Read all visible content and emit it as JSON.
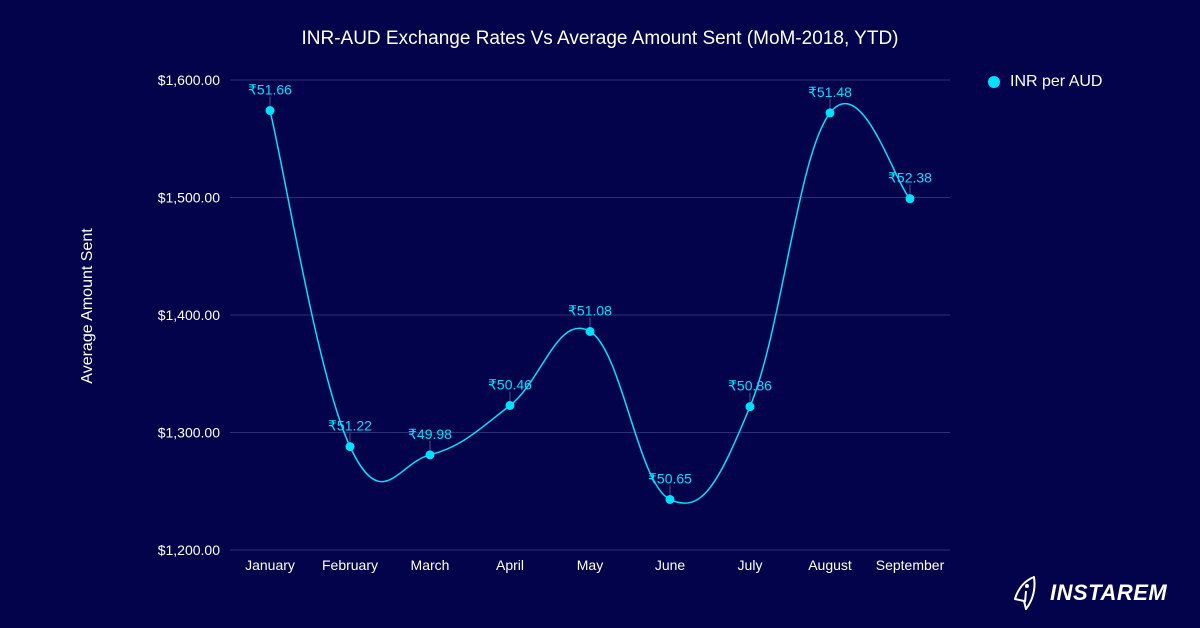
{
  "chart_data": {
    "type": "line",
    "title": "INR-AUD Exchange Rates Vs Average Amount Sent (MoM-2018, YTD)",
    "xlabel": "",
    "ylabel": "Average Amount Sent",
    "ylim": [
      1200,
      1600
    ],
    "yticks": [
      "$1,200.00",
      "$1,300.00",
      "$1,400.00",
      "$1,500.00",
      "$1,600.00"
    ],
    "ytick_values": [
      1200,
      1300,
      1400,
      1500,
      1600
    ],
    "categories": [
      "January",
      "February",
      "March",
      "April",
      "May",
      "June",
      "July",
      "August",
      "September"
    ],
    "grid": true,
    "legend_placement": "top-right",
    "series": [
      {
        "name": "INR per AUD",
        "values": [
          1574,
          1288,
          1281,
          1323,
          1386,
          1243,
          1322,
          1572,
          1499
        ],
        "labels": [
          "₹51.66",
          "₹51.22",
          "₹49.98",
          "₹50.46",
          "₹51.08",
          "₹50.65",
          "₹50.86",
          "₹51.48",
          "₹52.38"
        ],
        "color": "#00e1ff"
      }
    ]
  },
  "brand": {
    "name": "INSTAREM",
    "icon": "rocket-icon"
  },
  "colors": {
    "background": "#02034a",
    "grid": "#2e3075",
    "accent": "#00e1ff"
  }
}
